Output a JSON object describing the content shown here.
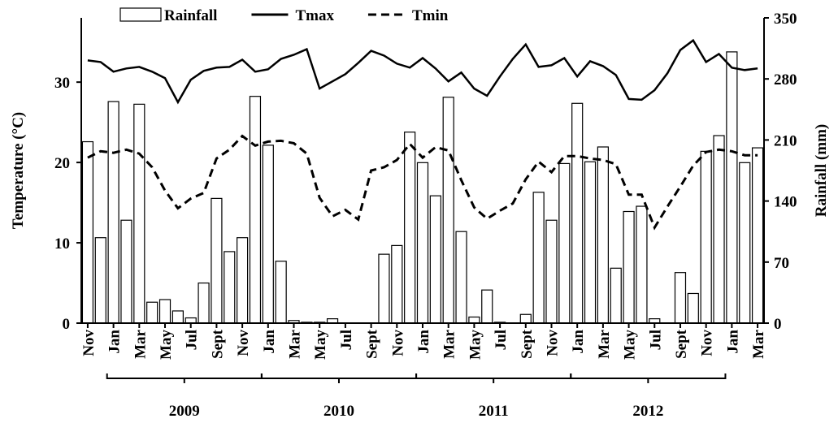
{
  "chart_data": {
    "type": "bar-line",
    "categories": [
      "Nov",
      null,
      "Jan",
      null,
      "Mar",
      null,
      "May",
      null,
      "Jul",
      null,
      "Sept",
      null,
      "Nov",
      null,
      "Jan",
      null,
      "Mar",
      null,
      "May",
      null,
      "Jul",
      null,
      "Sept",
      null,
      "Nov",
      null,
      "Jan",
      null,
      "Mar",
      null,
      "May",
      null,
      "Jul",
      null,
      "Sept",
      null,
      "Nov",
      null,
      "Jan",
      null,
      "Mar",
      null,
      "May",
      null,
      "Jul",
      null,
      "Sept",
      null,
      "Nov",
      null,
      "Jan",
      null,
      "Mar"
    ],
    "year_groups": [
      "2009",
      "2010",
      "2011",
      "2012"
    ],
    "ylabel": "Temperature  (°C)",
    "y2label": "Rainfall  (mm)",
    "ylim": [
      0,
      38
    ],
    "yticks": [
      0,
      10,
      20,
      30
    ],
    "y2lim": [
      0,
      350
    ],
    "y2ticks": [
      0,
      70,
      140,
      210,
      280,
      350
    ],
    "series": [
      {
        "name": "Rainfall",
        "type": "bar",
        "axis": "y2",
        "color": "#ffffff",
        "values": [
          208,
          98,
          254,
          118,
          251,
          24,
          27,
          14,
          6,
          46,
          143,
          82,
          98,
          260,
          204,
          71,
          3,
          1,
          1,
          5,
          0,
          0,
          0,
          79,
          89,
          219,
          184,
          146,
          259,
          105,
          7,
          38,
          1,
          0,
          10,
          150,
          118,
          183,
          252,
          185,
          202,
          63,
          128,
          134,
          5,
          0,
          58,
          34,
          197,
          215,
          311,
          184,
          201
        ]
      },
      {
        "name": "Tmax",
        "type": "line",
        "color": "#000000",
        "values": [
          32.7,
          32.5,
          31.3,
          31.7,
          31.9,
          31.3,
          30.5,
          27.5,
          30.3,
          31.4,
          31.8,
          31.9,
          32.8,
          31.3,
          31.6,
          32.9,
          33.4,
          34.1,
          29.2,
          30.1,
          31.0,
          32.4,
          33.9,
          33.3,
          32.3,
          31.8,
          33.0,
          31.7,
          30.1,
          31.2,
          29.2,
          28.3,
          30.7,
          32.9,
          34.7,
          31.9,
          32.1,
          33.0,
          30.7,
          32.6,
          32.0,
          30.9,
          27.9,
          27.8,
          29.0,
          31.1,
          34.0,
          35.2,
          32.5,
          33.5,
          31.8,
          31.5,
          31.7
        ]
      },
      {
        "name": "Tmin",
        "type": "line",
        "dashed": true,
        "color": "#000000",
        "values": [
          20.6,
          21.4,
          21.2,
          21.6,
          21.1,
          19.4,
          16.5,
          14.3,
          15.5,
          16.2,
          20.5,
          21.6,
          23.3,
          22.1,
          22.6,
          22.7,
          22.4,
          21.1,
          15.6,
          13.3,
          14.1,
          12.9,
          19.0,
          19.4,
          20.3,
          22.3,
          20.6,
          21.9,
          21.5,
          17.8,
          14.4,
          13.0,
          14.0,
          14.9,
          17.9,
          20.1,
          18.8,
          20.8,
          20.8,
          20.5,
          20.3,
          19.8,
          16.0,
          16.0,
          11.9,
          14.5,
          17.0,
          19.6,
          21.3,
          21.6,
          21.4,
          20.9,
          20.9
        ]
      }
    ]
  }
}
